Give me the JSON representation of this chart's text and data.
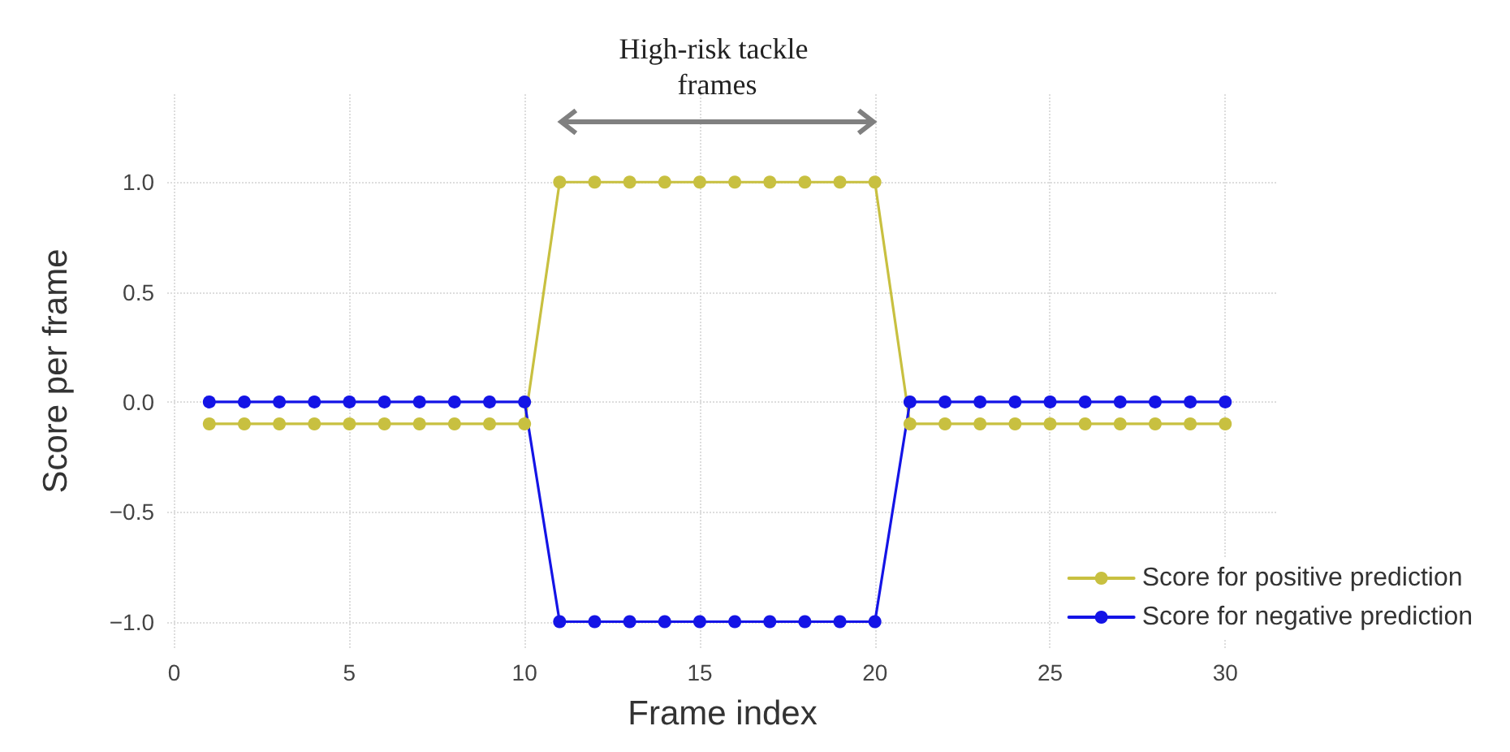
{
  "chart_data": {
    "type": "line",
    "xlabel": "Frame index",
    "ylabel": "Score per frame",
    "x": [
      1,
      2,
      3,
      4,
      5,
      6,
      7,
      8,
      9,
      10,
      11,
      12,
      13,
      14,
      15,
      16,
      17,
      18,
      19,
      20,
      21,
      22,
      23,
      24,
      25,
      26,
      27,
      28,
      29,
      30
    ],
    "series": [
      {
        "name": "Score for positive prediction",
        "color": "#c8c040",
        "values": [
          -0.1,
          -0.1,
          -0.1,
          -0.1,
          -0.1,
          -0.1,
          -0.1,
          -0.1,
          -0.1,
          -0.1,
          1,
          1,
          1,
          1,
          1,
          1,
          1,
          1,
          1,
          1,
          -0.1,
          -0.1,
          -0.1,
          -0.1,
          -0.1,
          -0.1,
          -0.1,
          -0.1,
          -0.1,
          -0.1
        ]
      },
      {
        "name": "Score for negative prediction",
        "color": "#1414e6",
        "values": [
          0,
          0,
          0,
          0,
          0,
          0,
          0,
          0,
          0,
          0,
          -1,
          -1,
          -1,
          -1,
          -1,
          -1,
          -1,
          -1,
          -1,
          -1,
          0,
          0,
          0,
          0,
          0,
          0,
          0,
          0,
          0,
          0
        ]
      }
    ],
    "xlim": [
      -0.2,
      31.5
    ],
    "xticks": [
      0,
      5,
      10,
      15,
      20,
      25,
      30
    ],
    "ylim": [
      -1.12,
      1.4
    ],
    "yticks": [
      {
        "value": -1,
        "label": "−1.0"
      },
      {
        "value": -0.5,
        "label": "−0.5"
      },
      {
        "value": 0,
        "label": "0.0"
      },
      {
        "value": 0.5,
        "label": "0.5"
      },
      {
        "value": 1,
        "label": "1.0"
      }
    ],
    "annotations": [
      "High-risk tackle frames"
    ],
    "grid": true,
    "legend": "bottom right",
    "marker": "circle",
    "line_style": "solid"
  }
}
